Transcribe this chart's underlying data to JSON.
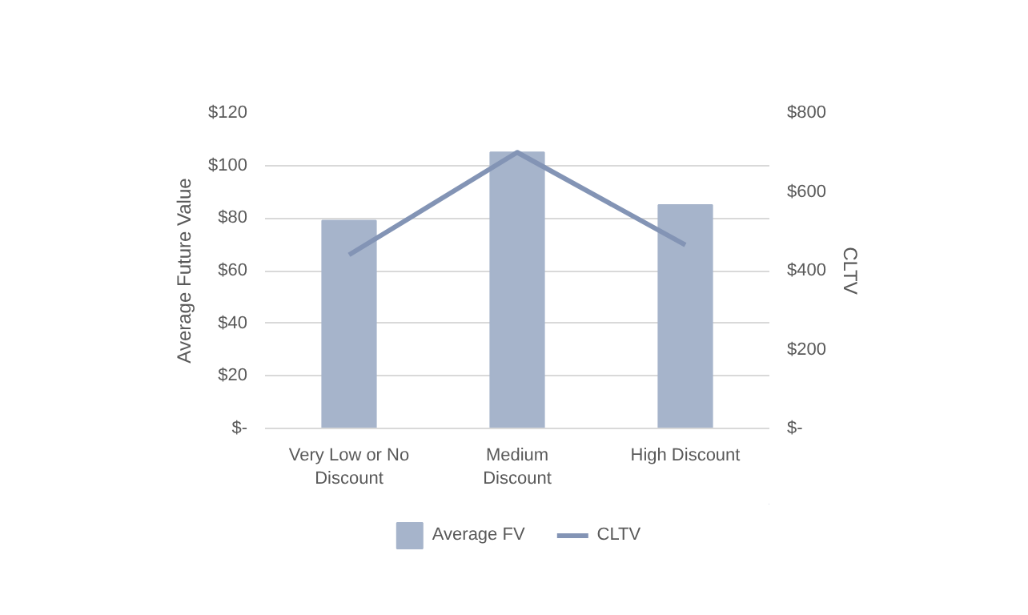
{
  "chart_data": {
    "type": "bar",
    "ylabel": "Average Future Value",
    "y2label": "CLTV",
    "categories": [
      "Very Low or No Discount",
      "Medium Discount",
      "High Discount"
    ],
    "series": [
      {
        "name": "Average FV",
        "color": "#a6b4cb",
        "values": [
          79,
          105,
          85
        ]
      },
      {
        "name": "CLTV",
        "type": "line",
        "axis": "y2",
        "color": "#8394b5",
        "values": [
          440,
          700,
          465
        ]
      }
    ],
    "ylim": [
      0,
      120
    ],
    "yticks": [
      {
        "value": 0,
        "label": "$-"
      },
      {
        "value": 20,
        "label": "$20"
      },
      {
        "value": 40,
        "label": "$40"
      },
      {
        "value": 60,
        "label": "$60"
      },
      {
        "value": 80,
        "label": "$80"
      },
      {
        "value": 100,
        "label": "$100"
      },
      {
        "value": 120,
        "label": "$120"
      }
    ],
    "y2lim": [
      0,
      800
    ],
    "y2ticks": [
      {
        "value": 0,
        "label": "$-"
      },
      {
        "value": 200,
        "label": "$200"
      },
      {
        "value": 400,
        "label": "$400"
      },
      {
        "value": 600,
        "label": "$600"
      },
      {
        "value": 800,
        "label": "$800"
      }
    ],
    "grid": "y",
    "legend": "bottom",
    "line_style": "solid"
  }
}
